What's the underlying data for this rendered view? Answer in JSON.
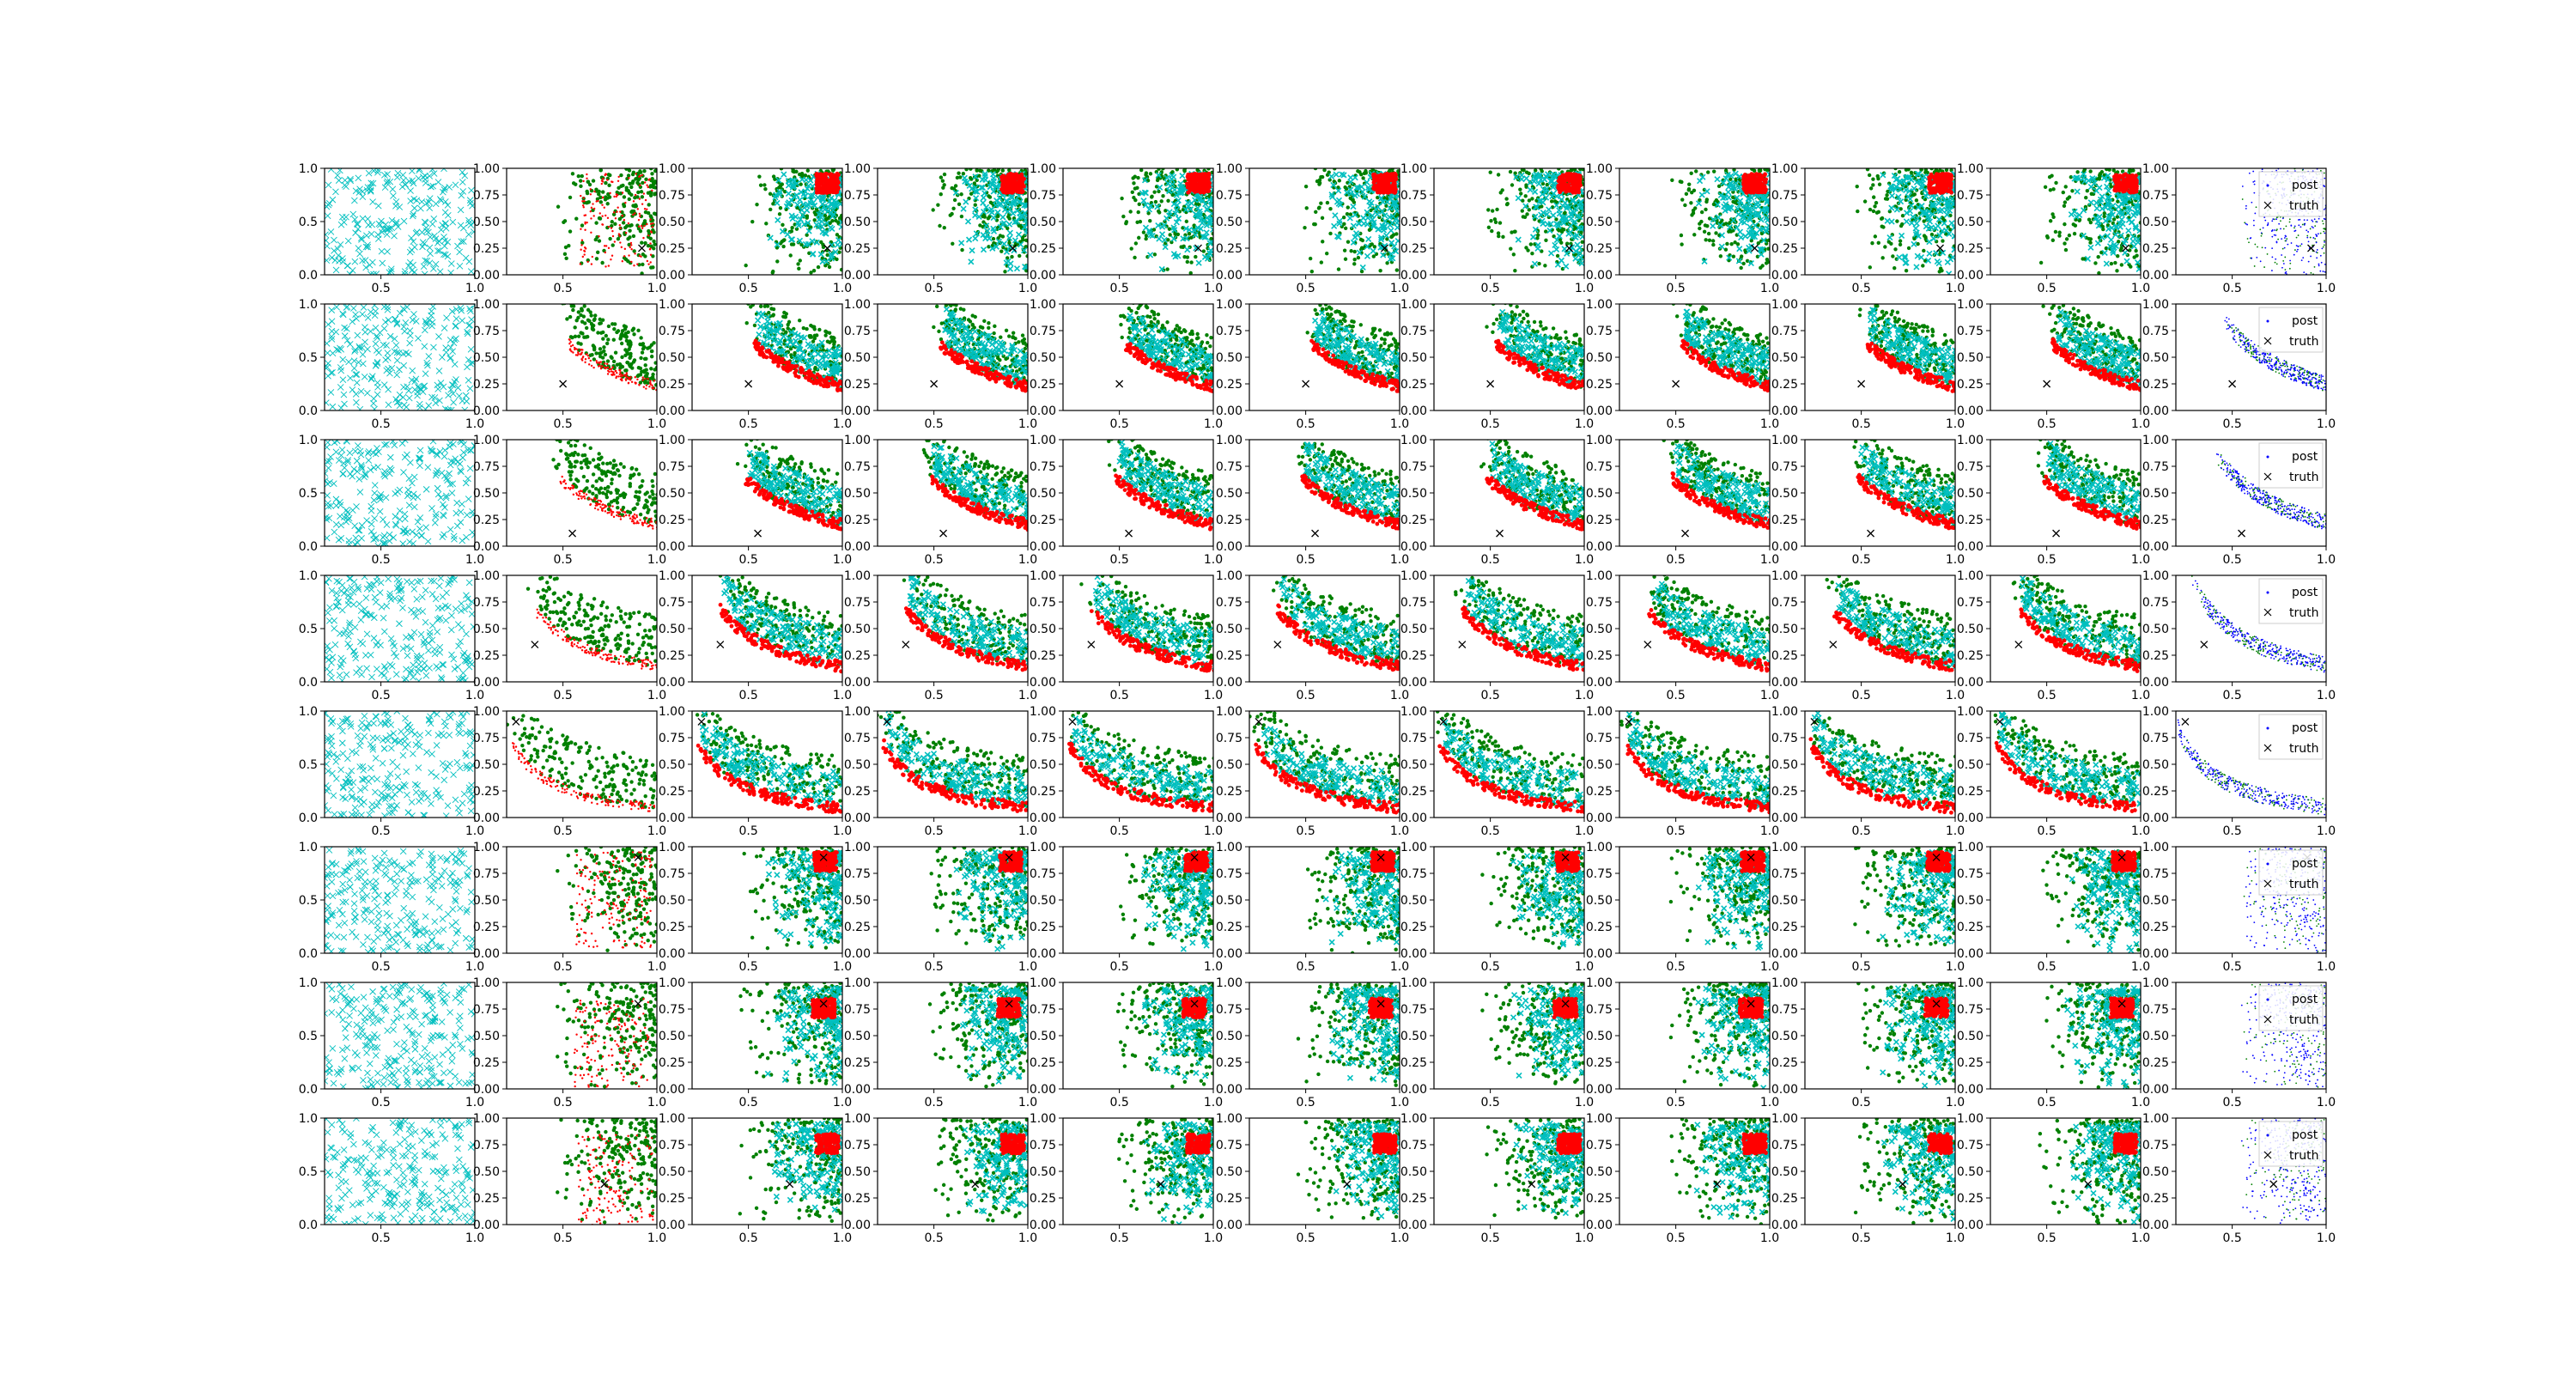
{
  "figure": {
    "grid_rows": 8,
    "grid_cols": 11,
    "background": "#ffffff",
    "note_colors": {
      "cyan_x": "#00bfbf",
      "green": "#008000",
      "red": "#ff0000",
      "blue": "#0000ff",
      "truth": "#000000"
    }
  },
  "chart_data": {
    "type": "scatter",
    "xlim": [
      0.2,
      1.0
    ],
    "ylim": [
      0.0,
      1.0
    ],
    "first_column": {
      "xticks": [
        "0.5",
        "1.0"
      ],
      "yticks": [
        "0.0",
        "0.5",
        "1.0"
      ],
      "xtick_values": [
        0.5,
        1.0
      ],
      "ytick_values": [
        0.0,
        0.5,
        1.0
      ]
    },
    "other_columns": {
      "xticks": [
        "0.5",
        "1.0"
      ],
      "yticks": [
        "0.00",
        "0.25",
        "0.50",
        "0.75",
        "1.00"
      ],
      "xtick_values": [
        0.5,
        1.0
      ],
      "ytick_values": [
        0.0,
        0.25,
        0.5,
        0.75,
        1.0
      ]
    },
    "legend": {
      "entries": [
        "post",
        "truth"
      ],
      "placement": "top-right",
      "last_column_only": true
    },
    "series": [
      {
        "name": "post",
        "color": "#0000ff",
        "marker": "dot"
      },
      {
        "name": "truth",
        "color": "#000000",
        "marker": "x"
      }
    ],
    "truth_points": [
      {
        "row": 1,
        "x": 0.92,
        "y": 0.25
      },
      {
        "row": 2,
        "x": 0.5,
        "y": 0.25
      },
      {
        "row": 3,
        "x": 0.55,
        "y": 0.12
      },
      {
        "row": 4,
        "x": 0.35,
        "y": 0.35
      },
      {
        "row": 5,
        "x": 0.25,
        "y": 0.9
      },
      {
        "row": 6,
        "x": 0.9,
        "y": 0.9
      },
      {
        "row": 7,
        "x": 0.9,
        "y": 0.8
      },
      {
        "row": 8,
        "x": 0.72,
        "y": 0.38
      }
    ],
    "row_curves": [
      {
        "row": 1,
        "red_center": [
          0.98,
          0.95
        ],
        "shape": "corner"
      },
      {
        "row": 2,
        "k": 0.5,
        "shape": "arc"
      },
      {
        "row": 3,
        "k": 0.45,
        "shape": "arc"
      },
      {
        "row": 4,
        "k": 0.32,
        "shape": "arc"
      },
      {
        "row": 5,
        "k": 0.2,
        "shape": "arc"
      },
      {
        "row": 6,
        "red_center": [
          0.97,
          0.95
        ],
        "shape": "corner"
      },
      {
        "row": 7,
        "red_center": [
          0.96,
          0.85
        ],
        "shape": "corner"
      },
      {
        "row": 8,
        "red_center": [
          0.98,
          0.85
        ],
        "shape": "corner"
      }
    ]
  }
}
